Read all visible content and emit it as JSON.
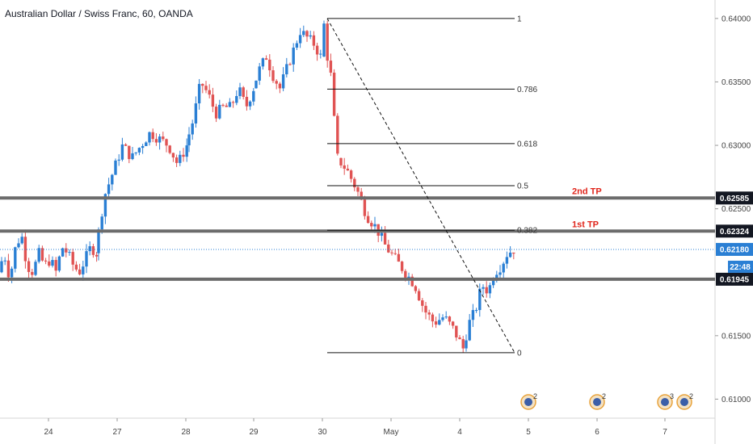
{
  "header": {
    "title": "Australian Dollar / Swiss Franc, 60, OANDA"
  },
  "colors": {
    "up": "#2a7fd4",
    "down": "#e05353",
    "level": "#6b6b6b",
    "tp": "#e0251b",
    "current": "#2a7fd4",
    "badge_dark": "#131722"
  },
  "chart_data": {
    "type": "candlestick",
    "symbol": "AUDCHF",
    "timeframe": "60",
    "ylim": [
      0.6085,
      0.6412
    ],
    "y_ticks": [
      {
        "value": 0.64,
        "label": "0.64000"
      },
      {
        "value": 0.635,
        "label": "0.63500"
      },
      {
        "value": 0.63,
        "label": "0.63000"
      },
      {
        "value": 0.625,
        "label": "0.62500"
      },
      {
        "value": 0.615,
        "label": "0.61500"
      },
      {
        "value": 0.61,
        "label": "0.61000"
      }
    ],
    "x_ticks": [
      {
        "index": 0,
        "label": "24"
      },
      {
        "index": 1,
        "label": "27"
      },
      {
        "index": 2,
        "label": "28"
      },
      {
        "index": 3,
        "label": "29"
      },
      {
        "index": 4,
        "label": "30"
      },
      {
        "index": 5,
        "label": "May"
      },
      {
        "index": 6,
        "label": "4"
      },
      {
        "index": 7,
        "label": "5"
      },
      {
        "index": 8,
        "label": "6"
      },
      {
        "index": 9,
        "label": "7"
      }
    ],
    "price_path": [
      [
        0.62,
        0.6215,
        0.6195,
        0.622,
        0.623,
        0.6205,
        0.62,
        0.6215,
        0.6205,
        0.621,
        0.62,
        0.622,
        0.6215,
        0.6205,
        0.62,
        0.621,
        0.622,
        0.6215
      ],
      [
        0.6215,
        0.626,
        0.628,
        0.63,
        0.629,
        0.63,
        0.631,
        0.6305,
        0.63,
        0.6285,
        0.63
      ],
      [
        0.63,
        0.632,
        0.635,
        0.634,
        0.6325,
        0.633,
        0.633,
        0.6345,
        0.633,
        0.6345
      ],
      [
        0.6345,
        0.636,
        0.637,
        0.6355,
        0.6345,
        0.636,
        0.6375,
        0.639,
        0.6385,
        0.638,
        0.637
      ],
      [
        0.637,
        0.6385,
        0.6395,
        0.64,
        0.637,
        0.636,
        0.6355,
        0.634,
        0.632,
        0.63,
        0.629
      ],
      [
        0.629,
        0.628,
        0.6265,
        0.6245,
        0.6235,
        0.622,
        0.621,
        0.62,
        0.619,
        0.617,
        0.616,
        0.6165,
        0.6155,
        0.614
      ],
      [
        0.614,
        0.616,
        0.617,
        0.619,
        0.6185,
        0.62,
        0.6205,
        0.6215,
        0.6218
      ]
    ],
    "fib_levels": [
      {
        "ratio_label": "1",
        "value": 0.64
      },
      {
        "ratio_label": "0.786",
        "value": 0.63443
      },
      {
        "ratio_label": "0.618",
        "value": 0.63014
      },
      {
        "ratio_label": "0.5",
        "value": 0.62682
      },
      {
        "ratio_label": "0.382",
        "value": 0.62331
      },
      {
        "ratio_label": "0",
        "value": 0.61366
      }
    ],
    "horizontal_levels": [
      {
        "value": 0.62585,
        "label": "0.62585"
      },
      {
        "value": 0.62324,
        "label": "0.62324"
      },
      {
        "value": 0.61945,
        "label": "0.61945"
      }
    ],
    "annotations": [
      {
        "text": "2nd TP",
        "value": 0.62585
      },
      {
        "text": "1st TP",
        "value": 0.62324
      }
    ],
    "current_price": {
      "value": 0.6218,
      "label": "0.62180",
      "countdown": "22:48"
    },
    "events": [
      {
        "index": 7,
        "count": "2"
      },
      {
        "index": 8,
        "count": "2"
      },
      {
        "index": 9,
        "count": "3"
      },
      {
        "index": 9,
        "count": "2"
      }
    ]
  }
}
